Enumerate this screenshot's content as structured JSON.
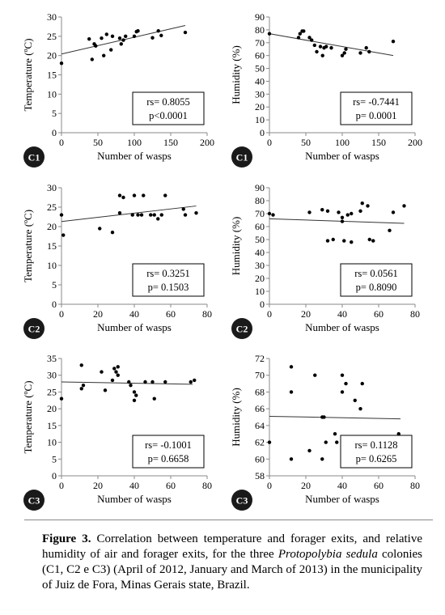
{
  "chart_data": [
    {
      "type": "scatter",
      "panel_label": "C1",
      "xlabel": "Number of wasps",
      "ylabel": "Temperature (ºC)",
      "xlim": [
        0,
        200
      ],
      "ylim": [
        0,
        30
      ],
      "xticks": [
        0,
        50,
        100,
        150,
        200
      ],
      "yticks": [
        0,
        5,
        10,
        15,
        20,
        25,
        30
      ],
      "stats": [
        "rs= 0.8055",
        "p<0.0001"
      ],
      "trend": [
        [
          0,
          20.4
        ],
        [
          170,
          27.8
        ]
      ],
      "points": [
        [
          0,
          18
        ],
        [
          38,
          24.3
        ],
        [
          42,
          19
        ],
        [
          45,
          23
        ],
        [
          47,
          22.5
        ],
        [
          55,
          24.5
        ],
        [
          58,
          20
        ],
        [
          62,
          25.5
        ],
        [
          68,
          21.5
        ],
        [
          70,
          25
        ],
        [
          80,
          24.5
        ],
        [
          82,
          23
        ],
        [
          85,
          24
        ],
        [
          88,
          25
        ],
        [
          100,
          25
        ],
        [
          103,
          26.2
        ],
        [
          105,
          26.4
        ],
        [
          125,
          24.6
        ],
        [
          133,
          26.4
        ],
        [
          137,
          25.2
        ],
        [
          170,
          26
        ]
      ]
    },
    {
      "type": "scatter",
      "panel_label": "C1",
      "xlabel": "Number of wasps",
      "ylabel": "Humidity (%)",
      "xlim": [
        0,
        200
      ],
      "ylim": [
        0,
        90
      ],
      "xticks": [
        0,
        50,
        100,
        150,
        200
      ],
      "yticks": [
        0,
        10,
        20,
        30,
        40,
        50,
        60,
        70,
        80,
        90
      ],
      "stats": [
        "rs= -0.7441",
        "p= 0.0001"
      ],
      "trend": [
        [
          0,
          77
        ],
        [
          170,
          60
        ]
      ],
      "points": [
        [
          0,
          77
        ],
        [
          40,
          74
        ],
        [
          42,
          77
        ],
        [
          45,
          79
        ],
        [
          47,
          79
        ],
        [
          55,
          74
        ],
        [
          58,
          72
        ],
        [
          62,
          68
        ],
        [
          65,
          63
        ],
        [
          70,
          67
        ],
        [
          73,
          60
        ],
        [
          75,
          66
        ],
        [
          78,
          67
        ],
        [
          85,
          66
        ],
        [
          100,
          60
        ],
        [
          103,
          62
        ],
        [
          105,
          65
        ],
        [
          125,
          62
        ],
        [
          133,
          66
        ],
        [
          137,
          63
        ],
        [
          170,
          71
        ]
      ]
    },
    {
      "type": "scatter",
      "panel_label": "C2",
      "xlabel": "Number of wasps",
      "ylabel": "Temperature (ºC)",
      "xlim": [
        0,
        80
      ],
      "ylim": [
        0,
        30
      ],
      "xticks": [
        0,
        20,
        40,
        60,
        80
      ],
      "yticks": [
        0,
        5,
        10,
        15,
        20,
        25,
        30
      ],
      "stats": [
        "rs= 0.3251",
        "p= 0.1503"
      ],
      "trend": [
        [
          0,
          21.3
        ],
        [
          74,
          25.3
        ]
      ],
      "points": [
        [
          0,
          23
        ],
        [
          1,
          17.8
        ],
        [
          21,
          19.5
        ],
        [
          28,
          18.5
        ],
        [
          32,
          28
        ],
        [
          32,
          23.5
        ],
        [
          34,
          27.5
        ],
        [
          39,
          23
        ],
        [
          40,
          28
        ],
        [
          42,
          23
        ],
        [
          44,
          23
        ],
        [
          45,
          28
        ],
        [
          49,
          23
        ],
        [
          51,
          23
        ],
        [
          53,
          22
        ],
        [
          55,
          23
        ],
        [
          57,
          28
        ],
        [
          67,
          24.5
        ],
        [
          68,
          23
        ],
        [
          74,
          23.5
        ]
      ]
    },
    {
      "type": "scatter",
      "panel_label": "C2",
      "xlabel": "Number of wasps",
      "ylabel": "Humidity (%)",
      "xlim": [
        0,
        80
      ],
      "ylim": [
        0,
        90
      ],
      "xticks": [
        0,
        20,
        40,
        60,
        80
      ],
      "yticks": [
        0,
        10,
        20,
        30,
        40,
        50,
        60,
        70,
        80,
        90
      ],
      "stats": [
        "rs= 0.0561",
        "p= 0.8090"
      ],
      "trend": [
        [
          0,
          66
        ],
        [
          74,
          62.5
        ]
      ],
      "points": [
        [
          0,
          70
        ],
        [
          2,
          69
        ],
        [
          22,
          71
        ],
        [
          29,
          73
        ],
        [
          32,
          72
        ],
        [
          32,
          49
        ],
        [
          35,
          50
        ],
        [
          38,
          71
        ],
        [
          40,
          67
        ],
        [
          40,
          64
        ],
        [
          41,
          49
        ],
        [
          43,
          69
        ],
        [
          45,
          70
        ],
        [
          45,
          48
        ],
        [
          50,
          72
        ],
        [
          51,
          78
        ],
        [
          54,
          76
        ],
        [
          55,
          50
        ],
        [
          57,
          49
        ],
        [
          66,
          57
        ],
        [
          68,
          71
        ],
        [
          74,
          76
        ]
      ]
    },
    {
      "type": "scatter",
      "panel_label": "C3",
      "xlabel": "Number of wasps",
      "ylabel": "Temperature (ºC)",
      "xlim": [
        0,
        80
      ],
      "ylim": [
        0,
        35
      ],
      "xticks": [
        0,
        20,
        40,
        60,
        80
      ],
      "yticks": [
        0,
        5,
        10,
        15,
        20,
        25,
        30,
        35
      ],
      "stats": [
        "rs= -0.1001",
        "p= 0.6658"
      ],
      "trend": [
        [
          0,
          28
        ],
        [
          72,
          27.3
        ]
      ],
      "points": [
        [
          0,
          23
        ],
        [
          11,
          26
        ],
        [
          11,
          33
        ],
        [
          12,
          27
        ],
        [
          22,
          31
        ],
        [
          24,
          25.5
        ],
        [
          28,
          28.5
        ],
        [
          29,
          32
        ],
        [
          30,
          31
        ],
        [
          31,
          32.5
        ],
        [
          31,
          30
        ],
        [
          37,
          28
        ],
        [
          38,
          27
        ],
        [
          40,
          25
        ],
        [
          40,
          22.5
        ],
        [
          41,
          24
        ],
        [
          46,
          28
        ],
        [
          50,
          28
        ],
        [
          51,
          23
        ],
        [
          57,
          28
        ],
        [
          71,
          28
        ],
        [
          73,
          28.5
        ]
      ]
    },
    {
      "type": "scatter",
      "panel_label": "C3",
      "xlabel": "Number of wasps",
      "ylabel": "Humidity (%)",
      "xlim": [
        0,
        80
      ],
      "ylim": [
        58,
        72
      ],
      "xticks": [
        0,
        20,
        40,
        60,
        80
      ],
      "yticks": [
        58,
        60,
        62,
        64,
        66,
        68,
        70,
        72
      ],
      "stats": [
        "rs= 0.1128",
        "p= 0.6265"
      ],
      "trend": [
        [
          0,
          65.1
        ],
        [
          72,
          64.8
        ]
      ],
      "points": [
        [
          0,
          62
        ],
        [
          12,
          71
        ],
        [
          12,
          68
        ],
        [
          12,
          60
        ],
        [
          22,
          61
        ],
        [
          25,
          70
        ],
        [
          29,
          60
        ],
        [
          29,
          65
        ],
        [
          30,
          65
        ],
        [
          31,
          62
        ],
        [
          36,
          63
        ],
        [
          37,
          62
        ],
        [
          40,
          70
        ],
        [
          40,
          68
        ],
        [
          42,
          69
        ],
        [
          47,
          67
        ],
        [
          50,
          66
        ],
        [
          51,
          69
        ],
        [
          71,
          63
        ]
      ]
    }
  ],
  "caption": {
    "label": "Figure 3.",
    "text1": "Correlation between temperature and forager exits, and relative humidity of air and forager exits, for the three",
    "species": "Protopolybia sedula",
    "text2": "colonies (C1, C2 e C3) (April of 2012, January and March of 2013) in the municipality of Juiz de Fora, Minas Gerais state, Brazil."
  }
}
